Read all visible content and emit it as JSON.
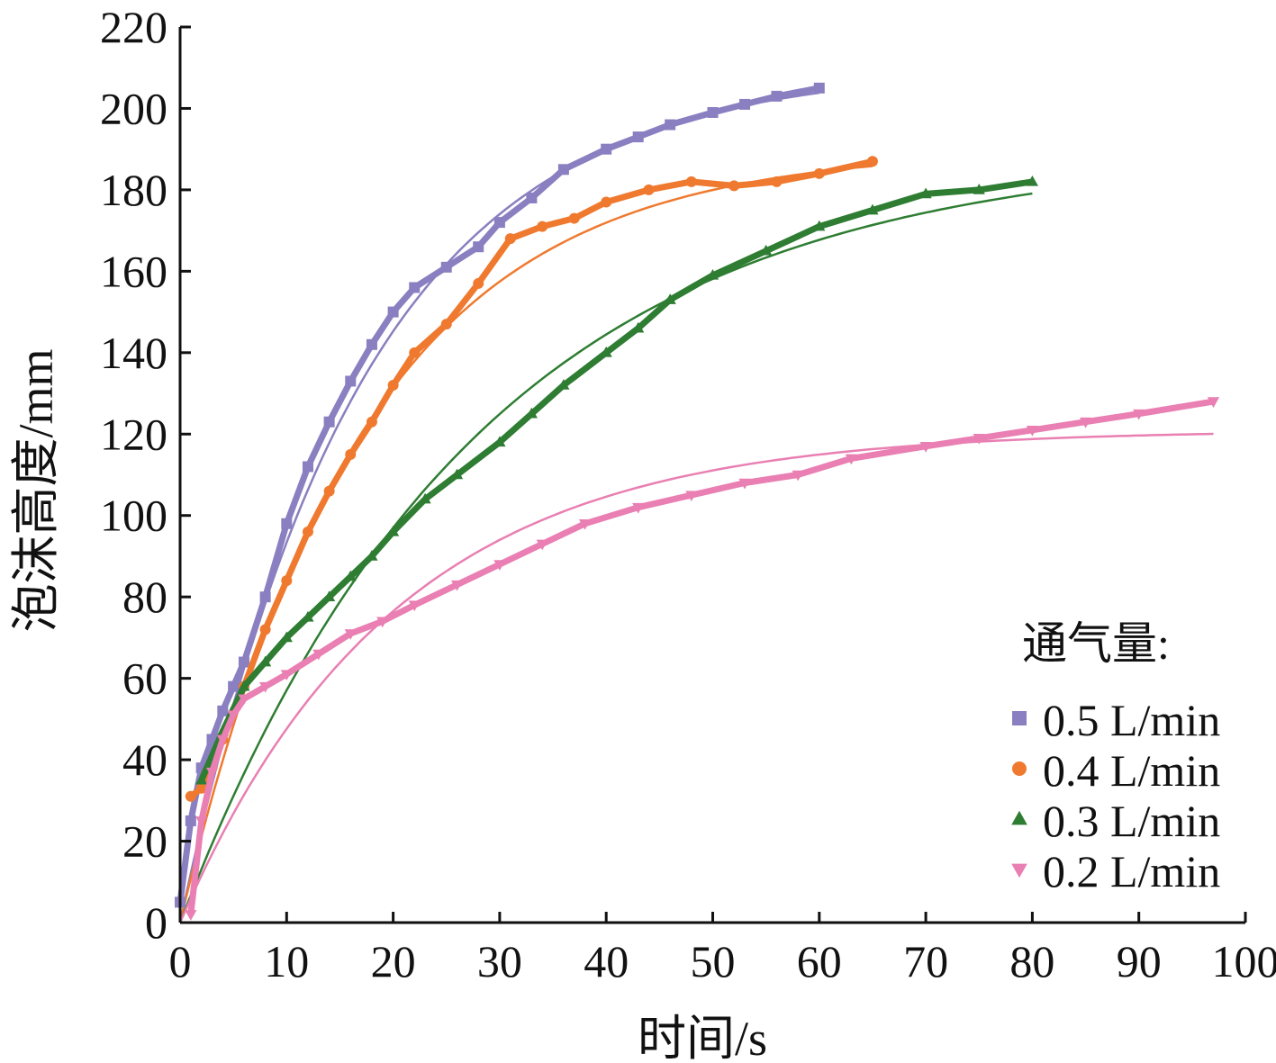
{
  "chart_data": {
    "type": "line",
    "xlabel": "时间/s",
    "ylabel": "泡沫高度/mm",
    "xlim": [
      0,
      100
    ],
    "ylim": [
      0,
      220
    ],
    "x_ticks": [
      "0",
      "10",
      "20",
      "30",
      "40",
      "50",
      "60",
      "70",
      "80",
      "90",
      "100"
    ],
    "y_ticks": [
      "0",
      "20",
      "40",
      "60",
      "80",
      "100",
      "120",
      "140",
      "160",
      "180",
      "200",
      "220"
    ],
    "legend": {
      "title": "通气量:",
      "position": "right"
    },
    "series": [
      {
        "name": "0.5 L/min",
        "color": "#8a7fc0",
        "marker": "square",
        "x": [
          0,
          1,
          2,
          3,
          4,
          5,
          6,
          8,
          10,
          12,
          14,
          16,
          18,
          20,
          22,
          25,
          28,
          30,
          33,
          36,
          40,
          43,
          46,
          50,
          53,
          56,
          60
        ],
        "y": [
          5,
          25,
          38,
          45,
          52,
          58,
          64,
          80,
          98,
          112,
          123,
          133,
          142,
          150,
          156,
          161,
          166,
          172,
          178,
          185,
          190,
          193,
          196,
          199,
          201,
          203,
          205
        ],
        "fit": {
          "a": 210,
          "tau": 17
        }
      },
      {
        "name": "0.4 L/min",
        "color": "#ef7a2f",
        "marker": "circle",
        "x": [
          1,
          2,
          3,
          4,
          6,
          8,
          10,
          12,
          14,
          16,
          18,
          20,
          22,
          25,
          28,
          31,
          34,
          37,
          40,
          44,
          48,
          52,
          56,
          60,
          65
        ],
        "y": [
          31,
          33,
          38,
          45,
          58,
          72,
          84,
          96,
          106,
          115,
          123,
          132,
          140,
          147,
          157,
          168,
          171,
          173,
          177,
          180,
          182,
          181,
          182,
          184,
          187
        ],
        "fit": {
          "a": 190,
          "tau": 17
        }
      },
      {
        "name": "0.3 L/min",
        "color": "#2e7d32",
        "marker": "triangle-up",
        "x": [
          2,
          4,
          6,
          8,
          10,
          12,
          14,
          16,
          18,
          20,
          23,
          26,
          30,
          33,
          36,
          40,
          43,
          46,
          50,
          55,
          60,
          65,
          70,
          75,
          80
        ],
        "y": [
          35,
          47,
          58,
          64,
          70,
          75,
          80,
          85,
          90,
          96,
          104,
          110,
          118,
          125,
          132,
          140,
          146,
          153,
          159,
          165,
          171,
          175,
          179,
          180,
          182
        ],
        "fit": {
          "a": 190,
          "tau": 28
        }
      },
      {
        "name": "0.2 L/min",
        "color": "#e97fb2",
        "marker": "triangle-down",
        "x": [
          1,
          2,
          3,
          4,
          5,
          6,
          8,
          10,
          13,
          16,
          19,
          22,
          26,
          30,
          34,
          38,
          43,
          48,
          53,
          58,
          63,
          70,
          75,
          80,
          85,
          90,
          97
        ],
        "y": [
          2,
          25,
          37,
          45,
          51,
          55,
          58,
          61,
          66,
          71,
          74,
          78,
          83,
          88,
          93,
          98,
          102,
          105,
          108,
          110,
          114,
          117,
          119,
          121,
          123,
          125,
          128
        ],
        "fit": {
          "a": 121,
          "tau": 20
        }
      }
    ]
  }
}
